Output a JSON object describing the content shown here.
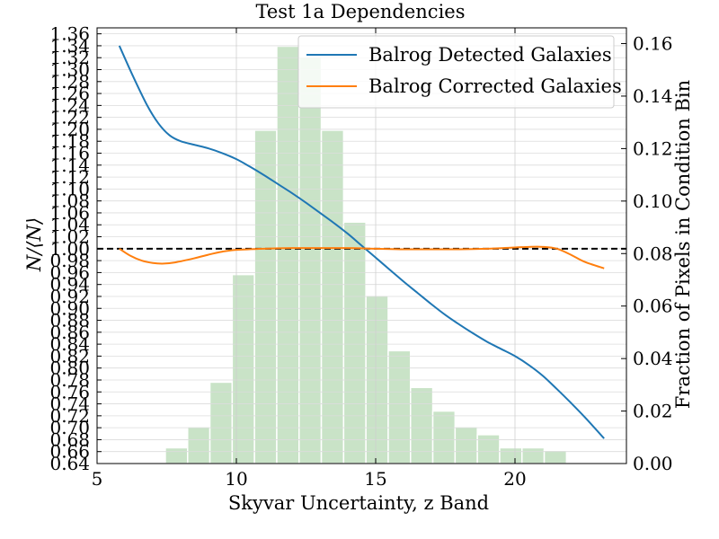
{
  "chart_data": {
    "type": "line",
    "title": "Test 1a Dependencies",
    "xlabel": "Skyvar Uncertainty, z Band",
    "ylabel": "N/⟨N⟩",
    "y2label": "Fraction of Pixels in Condition Bin",
    "xlim": [
      5,
      24
    ],
    "ylim": [
      0.64,
      1.37
    ],
    "y2lim": [
      0,
      0.166
    ],
    "x_ticks": [
      "5",
      "10",
      "15",
      "20"
    ],
    "y_ticks": [
      "0.64",
      "0.66",
      "0.68",
      "0.70",
      "0.72",
      "0.74",
      "0.76",
      "0.78",
      "0.80",
      "0.82",
      "0.84",
      "0.86",
      "0.88",
      "0.90",
      "0.92",
      "0.94",
      "0.96",
      "0.98",
      "1.00",
      "1.02",
      "1.04",
      "1.06",
      "1.08",
      "1.10",
      "1.12",
      "1.14",
      "1.16",
      "1.18",
      "1.20",
      "1.22",
      "1.24",
      "1.26",
      "1.28",
      "1.30",
      "1.32",
      "1.34",
      "1.36"
    ],
    "y2_ticks": [
      "0.00",
      "0.02",
      "0.04",
      "0.06",
      "0.08",
      "0.10",
      "0.12",
      "0.14",
      "0.16"
    ],
    "reference_line": {
      "y": 1.0,
      "style": "dashed",
      "color": "#000000"
    },
    "legend": {
      "placement": "top-right"
    },
    "series": [
      {
        "name": "Balrog Detected Galaxies",
        "color": "#1f77b4",
        "x": [
          5.8,
          6.3,
          6.8,
          7.2,
          7.6,
          8.0,
          8.5,
          9.0,
          9.5,
          10.0,
          10.5,
          11.0,
          11.5,
          12.0,
          12.5,
          13.0,
          13.5,
          14.0,
          14.5,
          15.0,
          15.5,
          16.0,
          16.5,
          17.0,
          17.5,
          18.0,
          18.5,
          19.0,
          19.5,
          20.0,
          20.5,
          21.0,
          21.5,
          22.0,
          22.5,
          23.2
        ],
        "values": [
          1.34,
          1.288,
          1.24,
          1.21,
          1.19,
          1.18,
          1.174,
          1.168,
          1.16,
          1.15,
          1.137,
          1.123,
          1.108,
          1.093,
          1.077,
          1.06,
          1.043,
          1.025,
          1.005,
          0.985,
          0.965,
          0.945,
          0.926,
          0.907,
          0.889,
          0.873,
          0.858,
          0.844,
          0.832,
          0.82,
          0.805,
          0.787,
          0.765,
          0.742,
          0.718,
          0.682
        ]
      },
      {
        "name": "Balrog Corrected Galaxies",
        "color": "#ff7f0e",
        "x": [
          5.8,
          6.2,
          6.6,
          7.0,
          7.4,
          7.8,
          8.5,
          9.0,
          9.5,
          10.0,
          11.0,
          12.0,
          13.0,
          14.0,
          15.0,
          16.0,
          17.0,
          18.0,
          19.0,
          20.0,
          20.5,
          21.0,
          21.5,
          22.0,
          22.5,
          23.2
        ],
        "values": [
          1.0,
          0.988,
          0.98,
          0.976,
          0.975,
          0.977,
          0.984,
          0.99,
          0.995,
          0.998,
          1.0,
          1.001,
          1.001,
          1.001,
          1.0,
          0.999,
          0.999,
          0.999,
          1.0,
          1.002,
          1.003,
          1.003,
          1.0,
          0.99,
          0.978,
          0.967
        ]
      }
    ],
    "histogram": {
      "name": "Fraction of Pixels in Condition Bin",
      "color": "#c9e3c7",
      "bin_width": 0.8,
      "x_centers": [
        6.25,
        7.05,
        7.85,
        8.65,
        9.45,
        10.25,
        11.05,
        11.85,
        12.65,
        13.45,
        14.25,
        15.05,
        15.85,
        16.65,
        17.45,
        18.25,
        19.05,
        19.85,
        20.65,
        21.45,
        22.25,
        23.05
      ],
      "values": [
        0.0005,
        0.0005,
        0.006,
        0.014,
        0.031,
        0.072,
        0.127,
        0.159,
        0.155,
        0.127,
        0.092,
        0.064,
        0.043,
        0.029,
        0.02,
        0.014,
        0.011,
        0.006,
        0.006,
        0.005,
        0.0,
        0.0
      ]
    }
  }
}
